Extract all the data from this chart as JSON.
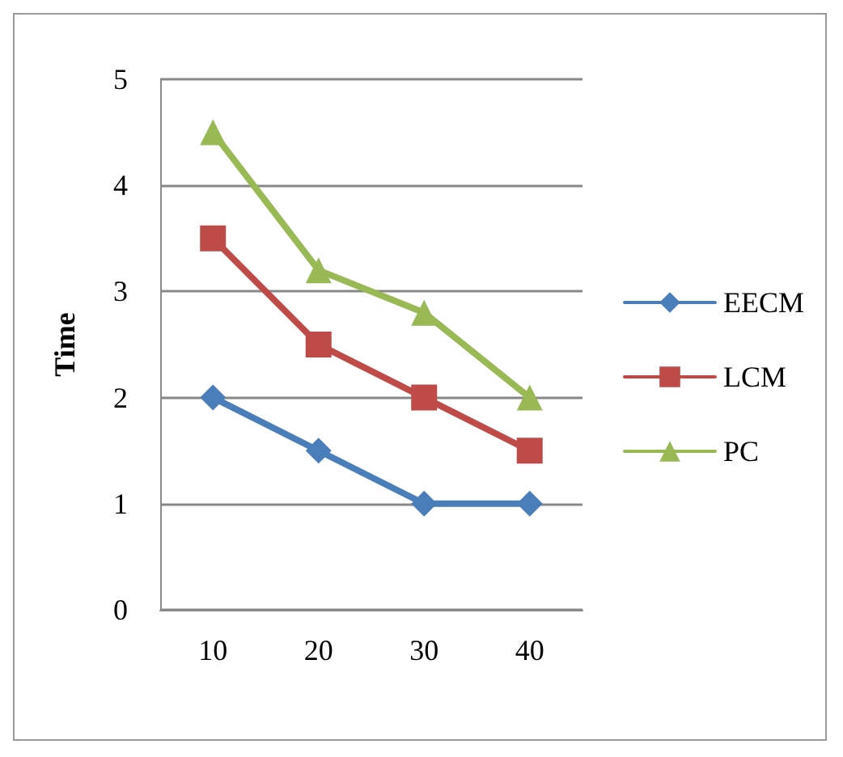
{
  "chart_data": {
    "type": "line",
    "ylabel": "Time",
    "categories": [
      "10",
      "20",
      "30",
      "40"
    ],
    "series": [
      {
        "name": "EECM",
        "color": "#4a7ebb",
        "marker": "diamond",
        "values": [
          2,
          1.5,
          1,
          1
        ]
      },
      {
        "name": "LCM",
        "color": "#be4b48",
        "marker": "square",
        "values": [
          3.5,
          2.5,
          2,
          1.5
        ]
      },
      {
        "name": "PC",
        "color": "#98b954",
        "marker": "triangle",
        "values": [
          4.5,
          3.2,
          2.8,
          2
        ]
      }
    ],
    "ylim": [
      0,
      5
    ],
    "yticks": [
      0,
      1,
      2,
      3,
      4,
      5
    ],
    "grid": "y",
    "legend": "right",
    "line_style": "solid"
  }
}
